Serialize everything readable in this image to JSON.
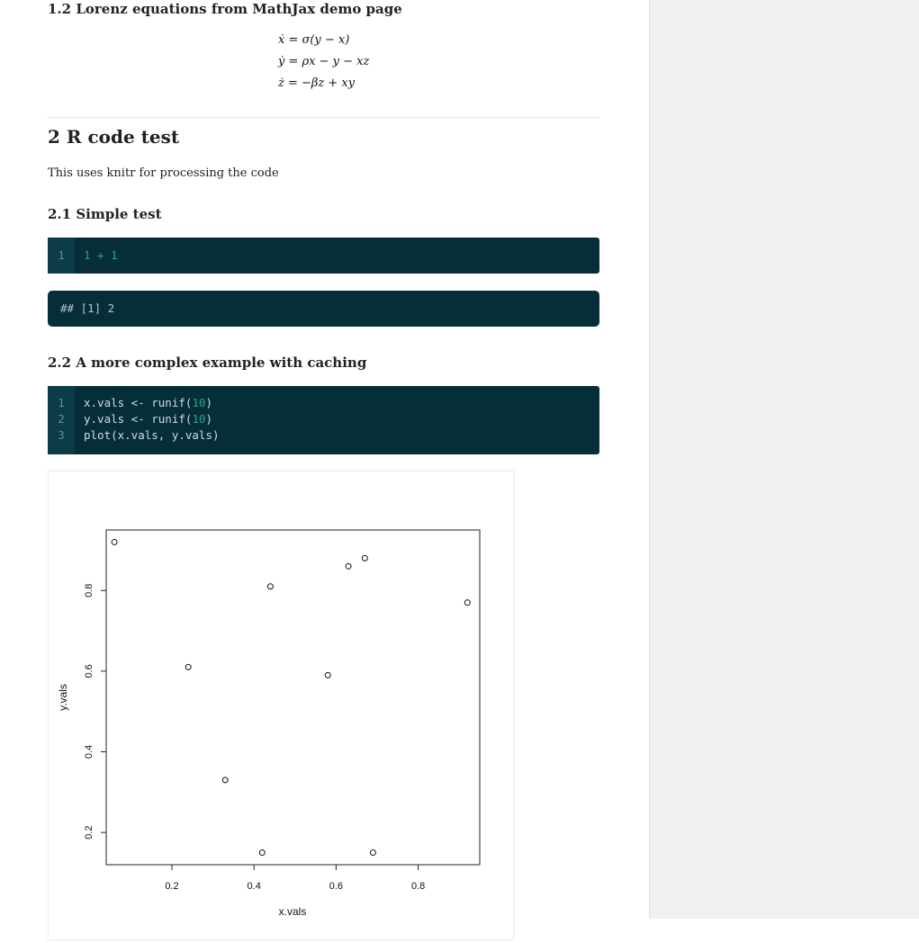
{
  "sections": {
    "lorenz_heading": "1.2 Lorenz equations from MathJax demo page",
    "equations": [
      "ẋ = σ(y − x)",
      "ẏ = ρx − y − xz",
      "ż = −βz + xy"
    ],
    "r_heading": "2 R code test",
    "r_intro": "This uses knitr for processing the code",
    "simple_heading": "2.1 Simple test",
    "complex_heading": "2.2 A more complex example with caching"
  },
  "code_blocks": {
    "simple": {
      "line_numbers": [
        "1"
      ],
      "lines": [
        "1 + 1"
      ]
    },
    "output": {
      "lines": [
        "## [1] 2"
      ]
    },
    "complex": {
      "line_numbers": [
        "1",
        "2",
        "3"
      ],
      "lines": [
        "x.vals <- runif(10)",
        "y.vals <- runif(10)",
        "plot(x.vals, y.vals)"
      ]
    }
  },
  "chart_data": {
    "type": "scatter",
    "xlabel": "x.vals",
    "ylabel": "y.vals",
    "xlim": [
      0.04,
      0.95
    ],
    "ylim": [
      0.12,
      0.95
    ],
    "x_ticks": [
      "0.2",
      "0.4",
      "0.6",
      "0.8"
    ],
    "y_ticks": [
      "0.2",
      "0.4",
      "0.6",
      "0.8"
    ],
    "points": [
      {
        "x": 0.06,
        "y": 0.92
      },
      {
        "x": 0.44,
        "y": 0.81
      },
      {
        "x": 0.63,
        "y": 0.86
      },
      {
        "x": 0.67,
        "y": 0.88
      },
      {
        "x": 0.92,
        "y": 0.77
      },
      {
        "x": 0.24,
        "y": 0.61
      },
      {
        "x": 0.58,
        "y": 0.59
      },
      {
        "x": 0.33,
        "y": 0.33
      },
      {
        "x": 0.42,
        "y": 0.15
      },
      {
        "x": 0.69,
        "y": 0.15
      }
    ]
  }
}
